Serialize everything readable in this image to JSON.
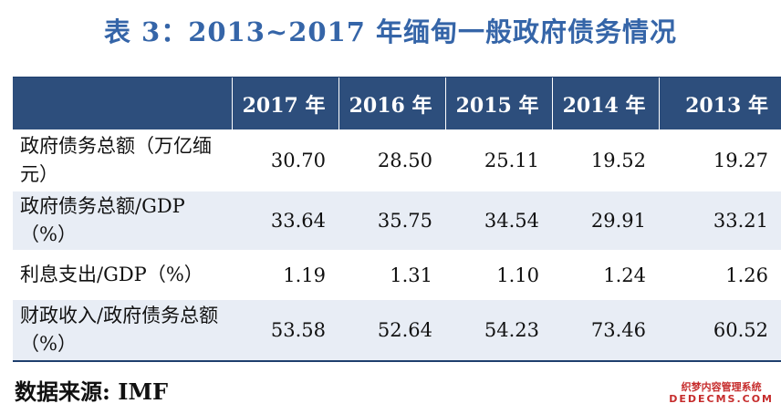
{
  "title": "表 3：2013~2017 年缅甸一般政府债务情况",
  "table": {
    "headers": [
      "",
      "2017 年",
      "2016 年",
      "2015 年",
      "2014 年",
      "2013 年"
    ],
    "rows": [
      {
        "label": "政府债务总额（万亿缅元）",
        "values": [
          "30.70",
          "28.50",
          "25.11",
          "19.52",
          "19.27"
        ]
      },
      {
        "label": "政府债务总额/GDP（%）",
        "values": [
          "33.64",
          "35.75",
          "34.54",
          "29.91",
          "33.21"
        ]
      },
      {
        "label": "利息支出/GDP（%）",
        "values": [
          "1.19",
          "1.31",
          "1.10",
          "1.24",
          "1.26"
        ]
      },
      {
        "label": "财政收入/政府债务总额（%）",
        "values": [
          "53.58",
          "52.64",
          "54.23",
          "73.46",
          "60.52"
        ]
      }
    ]
  },
  "source": "数据来源: IMF",
  "watermark": {
    "line1": "织梦内容管理系统",
    "line2": "DEDECMS.COM"
  }
}
